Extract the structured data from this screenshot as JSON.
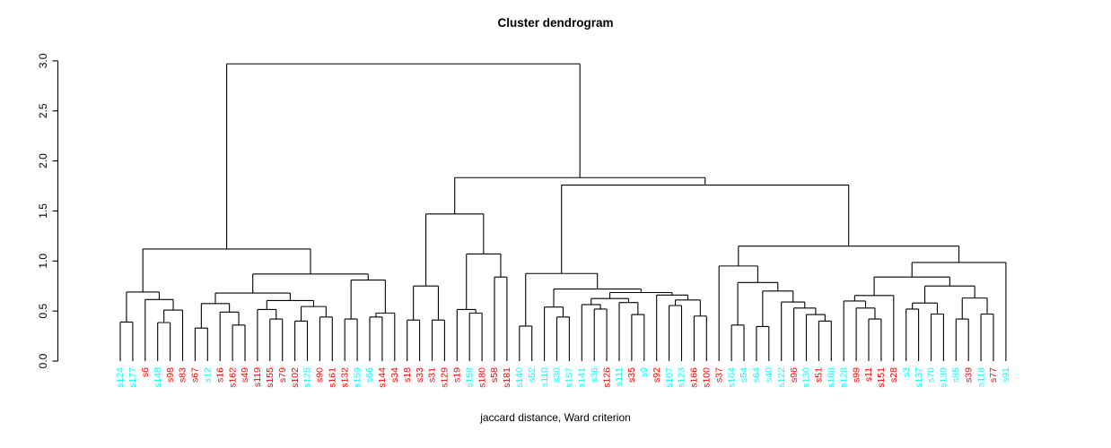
{
  "chart_data": {
    "type": "dendrogram",
    "title": "Cluster dendrogram",
    "xlabel": "jaccard distance, Ward criterion",
    "ylim": [
      0,
      3
    ],
    "ytick_labels": [
      "0.0",
      "0.5",
      "1.0",
      "1.5",
      "2.0",
      "2.5",
      "3.0"
    ],
    "grid": false,
    "legend": "none",
    "palette": {
      "red": "#ff0000",
      "cyan": "#00ffff",
      "line": "#000000"
    },
    "leaves": [
      {
        "label": "s124",
        "color": "cyan"
      },
      {
        "label": "s177",
        "color": "cyan"
      },
      {
        "label": "s6",
        "color": "red"
      },
      {
        "label": "s148",
        "color": "cyan"
      },
      {
        "label": "s98",
        "color": "red"
      },
      {
        "label": "s83",
        "color": "red"
      },
      {
        "label": "s67",
        "color": "red"
      },
      {
        "label": "s12",
        "color": "cyan"
      },
      {
        "label": "s16",
        "color": "red"
      },
      {
        "label": "s162",
        "color": "red"
      },
      {
        "label": "s49",
        "color": "red"
      },
      {
        "label": "s119",
        "color": "red"
      },
      {
        "label": "s155",
        "color": "red"
      },
      {
        "label": "s79",
        "color": "red"
      },
      {
        "label": "s102",
        "color": "red"
      },
      {
        "label": "s125",
        "color": "cyan"
      },
      {
        "label": "s90",
        "color": "red"
      },
      {
        "label": "s161",
        "color": "red"
      },
      {
        "label": "s132",
        "color": "red"
      },
      {
        "label": "s159",
        "color": "cyan"
      },
      {
        "label": "s66",
        "color": "cyan"
      },
      {
        "label": "s144",
        "color": "red"
      },
      {
        "label": "s34",
        "color": "red"
      },
      {
        "label": "s18",
        "color": "red"
      },
      {
        "label": "s33",
        "color": "red"
      },
      {
        "label": "s31",
        "color": "red"
      },
      {
        "label": "s129",
        "color": "red"
      },
      {
        "label": "s19",
        "color": "red"
      },
      {
        "label": "s158",
        "color": "cyan"
      },
      {
        "label": "s180",
        "color": "red"
      },
      {
        "label": "s58",
        "color": "red"
      },
      {
        "label": "s181",
        "color": "red"
      },
      {
        "label": "s140",
        "color": "cyan"
      },
      {
        "label": "s52",
        "color": "cyan"
      },
      {
        "label": "s110",
        "color": "cyan"
      },
      {
        "label": "s30",
        "color": "cyan"
      },
      {
        "label": "s157",
        "color": "cyan"
      },
      {
        "label": "s141",
        "color": "cyan"
      },
      {
        "label": "s36",
        "color": "cyan"
      },
      {
        "label": "s126",
        "color": "red"
      },
      {
        "label": "s111",
        "color": "cyan"
      },
      {
        "label": "s35",
        "color": "red"
      },
      {
        "label": "s9",
        "color": "cyan"
      },
      {
        "label": "s92",
        "color": "red"
      },
      {
        "label": "s107",
        "color": "cyan"
      },
      {
        "label": "s123",
        "color": "cyan"
      },
      {
        "label": "s166",
        "color": "red"
      },
      {
        "label": "s100",
        "color": "red"
      },
      {
        "label": "s37",
        "color": "red"
      },
      {
        "label": "s104",
        "color": "cyan"
      },
      {
        "label": "s54",
        "color": "cyan"
      },
      {
        "label": "s64",
        "color": "cyan"
      },
      {
        "label": "s40",
        "color": "cyan"
      },
      {
        "label": "s122",
        "color": "cyan"
      },
      {
        "label": "s96",
        "color": "red"
      },
      {
        "label": "s130",
        "color": "cyan"
      },
      {
        "label": "s51",
        "color": "red"
      },
      {
        "label": "s188",
        "color": "cyan"
      },
      {
        "label": "s128",
        "color": "cyan"
      },
      {
        "label": "s99",
        "color": "red"
      },
      {
        "label": "s11",
        "color": "red"
      },
      {
        "label": "s151",
        "color": "red"
      },
      {
        "label": "s28",
        "color": "red"
      },
      {
        "label": "s3",
        "color": "cyan"
      },
      {
        "label": "s137",
        "color": "cyan"
      },
      {
        "label": "s70",
        "color": "cyan"
      },
      {
        "label": "s139",
        "color": "cyan"
      },
      {
        "label": "s85",
        "color": "cyan"
      },
      {
        "label": "s39",
        "color": "red"
      },
      {
        "label": "s118",
        "color": "cyan"
      },
      {
        "label": "s77",
        "color": "red"
      },
      {
        "label": "s91",
        "color": "cyan"
      }
    ],
    "tree": {
      "h": 2.97,
      "c": [
        {
          "h": 1.12,
          "c": [
            {
              "h": 0.69,
              "c": [
                {
                  "h": 0.39,
                  "c": [
                    0,
                    1
                  ]
                },
                {
                  "h": 0.615,
                  "c": [
                    2,
                    {
                      "h": 0.51,
                      "c": [
                        {
                          "h": 0.385,
                          "c": [
                            3,
                            4
                          ]
                        },
                        5
                      ]
                    }
                  ]
                }
              ]
            },
            {
              "h": 0.87,
              "c": [
                {
                  "h": 0.68,
                  "c": [
                    {
                      "h": 0.575,
                      "c": [
                        {
                          "h": 0.33,
                          "c": [
                            6,
                            7
                          ]
                        },
                        {
                          "h": 0.49,
                          "c": [
                            8,
                            {
                              "h": 0.36,
                              "c": [
                                9,
                                10
                              ]
                            }
                          ]
                        }
                      ]
                    },
                    {
                      "h": 0.605,
                      "c": [
                        {
                          "h": 0.515,
                          "c": [
                            11,
                            {
                              "h": 0.42,
                              "c": [
                                12,
                                13
                              ]
                            }
                          ]
                        },
                        {
                          "h": 0.545,
                          "c": [
                            {
                              "h": 0.4,
                              "c": [
                                14,
                                15
                              ]
                            },
                            {
                              "h": 0.44,
                              "c": [
                                16,
                                17
                              ]
                            }
                          ]
                        }
                      ]
                    }
                  ]
                },
                {
                  "h": 0.81,
                  "c": [
                    {
                      "h": 0.42,
                      "c": [
                        18,
                        19
                      ]
                    },
                    {
                      "h": 0.48,
                      "c": [
                        {
                          "h": 0.44,
                          "c": [
                            20,
                            21
                          ]
                        },
                        22
                      ]
                    }
                  ]
                }
              ]
            }
          ]
        },
        {
          "h": 1.833,
          "c": [
            {
              "h": 1.47,
              "c": [
                {
                  "h": 0.75,
                  "c": [
                    {
                      "h": 0.41,
                      "c": [
                        23,
                        24
                      ]
                    },
                    {
                      "h": 0.41,
                      "c": [
                        25,
                        26
                      ]
                    }
                  ]
                },
                {
                  "h": 1.07,
                  "c": [
                    {
                      "h": 0.515,
                      "c": [
                        27,
                        {
                          "h": 0.48,
                          "c": [
                            28,
                            29
                          ]
                        }
                      ]
                    },
                    {
                      "h": 0.84,
                      "c": [
                        30,
                        31
                      ]
                    }
                  ]
                }
              ]
            },
            {
              "h": 1.759,
              "c": [
                {
                  "h": 0.875,
                  "c": [
                    {
                      "h": 0.35,
                      "c": [
                        32,
                        33
                      ]
                    },
                    {
                      "h": 0.72,
                      "c": [
                        {
                          "h": 0.54,
                          "c": [
                            34,
                            {
                              "h": 0.44,
                              "c": [
                                35,
                                36
                              ]
                            }
                          ]
                        },
                        {
                          "h": 0.685,
                          "c": [
                            {
                              "h": 0.625,
                              "c": [
                                {
                                  "h": 0.565,
                                  "c": [
                                    37,
                                    {
                                      "h": 0.52,
                                      "c": [
                                        38,
                                        39
                                      ]
                                    }
                                  ]
                                },
                                {
                                  "h": 0.585,
                                  "c": [
                                    40,
                                    {
                                      "h": 0.465,
                                      "c": [
                                        41,
                                        42
                                      ]
                                    }
                                  ]
                                }
                              ]
                            },
                            {
                              "h": 0.66,
                              "c": [
                                43,
                                {
                                  "h": 0.61,
                                  "c": [
                                    {
                                      "h": 0.555,
                                      "c": [
                                        44,
                                        45
                                      ]
                                    },
                                    {
                                      "h": 0.45,
                                      "c": [
                                        46,
                                        47
                                      ]
                                    }
                                  ]
                                }
                              ]
                            }
                          ]
                        }
                      ]
                    }
                  ]
                },
                {
                  "h": 1.149,
                  "c": [
                    {
                      "h": 0.95,
                      "c": [
                        48,
                        {
                          "h": 0.785,
                          "c": [
                            {
                              "h": 0.36,
                              "c": [
                                49,
                                50
                              ]
                            },
                            {
                              "h": 0.7,
                              "c": [
                                {
                                  "h": 0.345,
                                  "c": [
                                    51,
                                    52
                                  ]
                                },
                                {
                                  "h": 0.59,
                                  "c": [
                                    53,
                                    {
                                      "h": 0.53,
                                      "c": [
                                        54,
                                        {
                                          "h": 0.465,
                                          "c": [
                                            55,
                                            {
                                              "h": 0.4,
                                              "c": [
                                                56,
                                                57
                                              ]
                                            }
                                          ]
                                        }
                                      ]
                                    }
                                  ]
                                }
                              ]
                            }
                          ]
                        }
                      ]
                    },
                    {
                      "h": 0.985,
                      "c": [
                        {
                          "h": 0.84,
                          "c": [
                            {
                              "h": 0.655,
                              "c": [
                                {
                                  "h": 0.6,
                                  "c": [
                                    58,
                                    {
                                      "h": 0.53,
                                      "c": [
                                        59,
                                        {
                                          "h": 0.42,
                                          "c": [
                                            60,
                                            61
                                          ]
                                        }
                                      ]
                                    }
                                  ]
                                },
                                62
                              ]
                            },
                            {
                              "h": 0.75,
                              "c": [
                                {
                                  "h": 0.58,
                                  "c": [
                                    {
                                      "h": 0.52,
                                      "c": [
                                        63,
                                        64
                                      ]
                                    },
                                    {
                                      "h": 0.47,
                                      "c": [
                                        65,
                                        66
                                      ]
                                    }
                                  ]
                                },
                                {
                                  "h": 0.63,
                                  "c": [
                                    {
                                      "h": 0.42,
                                      "c": [
                                        67,
                                        68
                                      ]
                                    },
                                    {
                                      "h": 0.47,
                                      "c": [
                                        69,
                                        70
                                      ]
                                    }
                                  ]
                                }
                              ]
                            }
                          ]
                        },
                        71
                      ]
                    }
                  ]
                }
              ]
            }
          ]
        }
      ]
    }
  }
}
